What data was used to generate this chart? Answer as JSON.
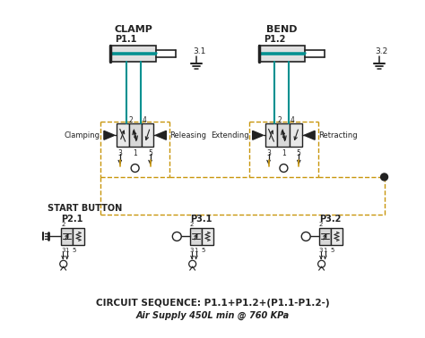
{
  "bg_color": "#ffffff",
  "clamp_label": "CLAMP",
  "bend_label": "BEND",
  "p11_label": "P1.1",
  "p12_label": "P1.2",
  "p21_label": "P2.1",
  "p31_label": "P3.1",
  "p32_label": "P3.2",
  "ref_31": "3.1",
  "ref_32": "3.2",
  "clamping_label": "Clamping",
  "releasing_label": "Releasing",
  "extending_label": "Extending",
  "retracting_label": "Retracting",
  "start_button_label": "START BUTTON",
  "circuit_seq": "CIRCUIT SEQUENCE: P1.1+P1.2+(P1.1-P1.2-)",
  "air_supply": "Air Supply 450L min @ 760 KPa",
  "dashed_color": "#C8960C",
  "teal_color": "#009090",
  "yellow_color": "#C8A000",
  "dark_color": "#222222",
  "fig_width": 4.74,
  "fig_height": 3.78,
  "dpi": 100
}
